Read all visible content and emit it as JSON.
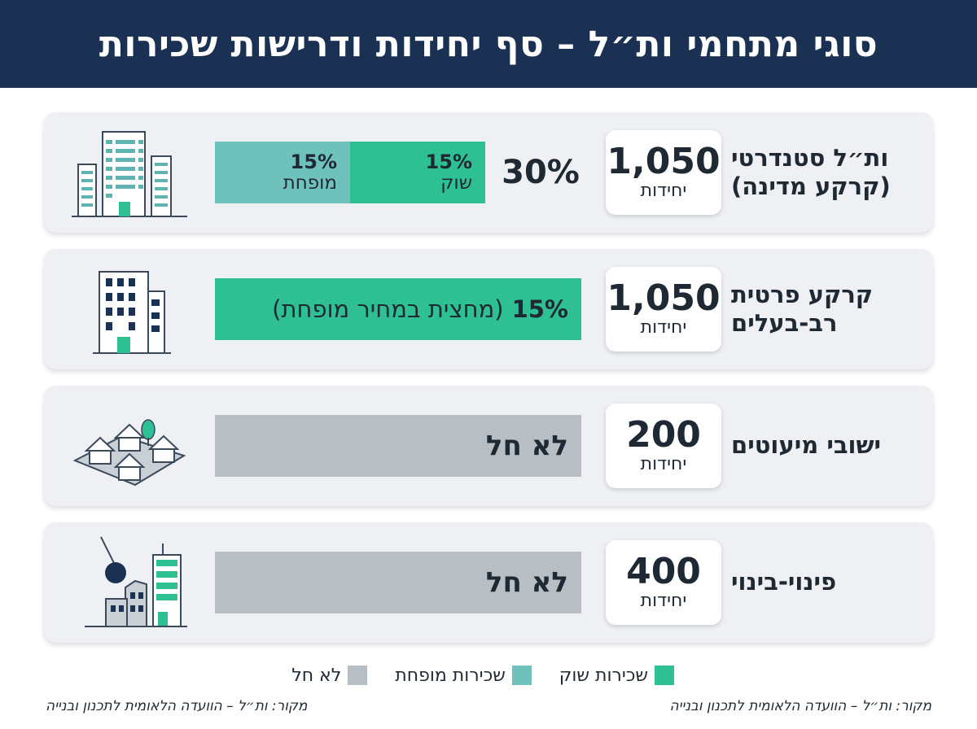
{
  "header": {
    "title": "סוגי מתחמי ות״ל – סף יחידות ודרישות שכירות"
  },
  "rows": [
    {
      "label_line1": "ות״ל סטנדרטי",
      "label_line2": "(קרקע מדינה)",
      "units": "1,050",
      "units_word": "יחידות",
      "total_pct": "30%",
      "market_pct": "15%",
      "market_label": "שוק",
      "reduced_pct": "15%",
      "reduced_label": "מופחת",
      "icon": "high-rise-buildings-icon"
    },
    {
      "label_line1": "קרקע פרטית",
      "label_line2": "רב-בעלים",
      "units": "1,050",
      "units_word": "יחידות",
      "bar_pct": "15%",
      "bar_text": "(מחצית במחיר מופחת)",
      "icon": "office-building-icon"
    },
    {
      "label_line1": "ישובי מיעוטים",
      "units": "200",
      "units_word": "יחידות",
      "bar_text": "לא חל",
      "icon": "village-houses-icon"
    },
    {
      "label_line1": "פינוי-בינוי",
      "units": "400",
      "units_word": "יחידות",
      "bar_text": "לא חל",
      "icon": "demolition-wrecking-ball-icon"
    }
  ],
  "legend": {
    "market": "שכירות שוק",
    "reduced": "שכירות מופחת",
    "na": "לא חל"
  },
  "colors": {
    "header_bg": "#1b3154",
    "market": "#2ebf93",
    "reduced": "#6fc2bb",
    "na": "#b7bfc4"
  },
  "source": {
    "right": "מקור: ות״ל – הוועדה הלאומית לתכנון ובנייה",
    "left": "מקור: ות״ל – הוועדה הלאומית לתכנון ובנייה"
  }
}
